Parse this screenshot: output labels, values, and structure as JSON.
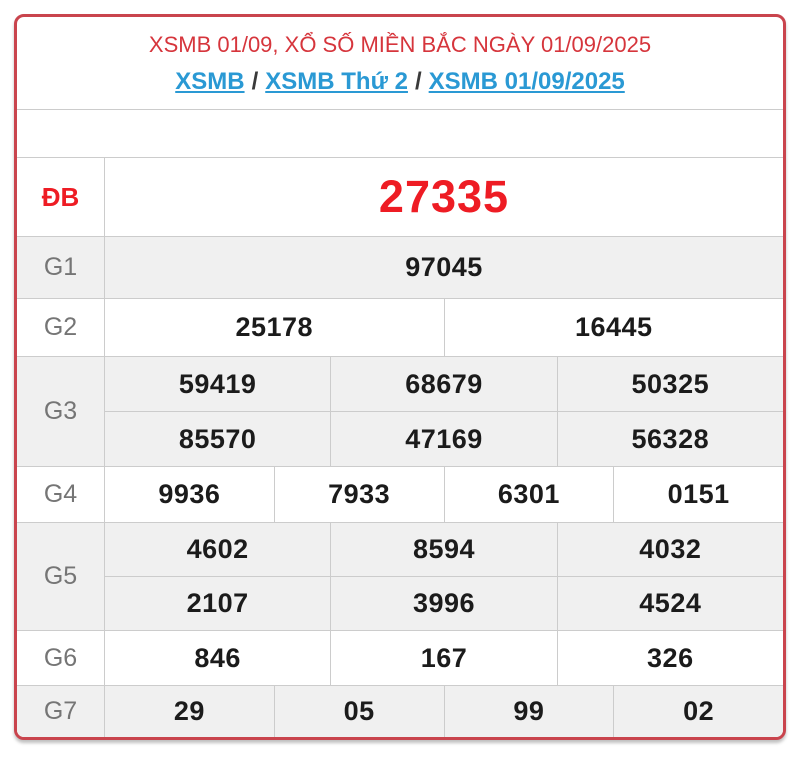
{
  "header": {
    "title": "XSMB 01/09, XỔ SỐ MIỀN BẮC NGÀY 01/09/2025",
    "breadcrumb": {
      "separator": "/",
      "items": [
        {
          "label": "XSMB"
        },
        {
          "label": "XSMB Thứ 2"
        },
        {
          "label": "XSMB 01/09/2025"
        }
      ]
    }
  },
  "prizes": {
    "db": {
      "label": "ĐB",
      "values": [
        "27335"
      ]
    },
    "g1": {
      "label": "G1",
      "values": [
        "97045"
      ]
    },
    "g2": {
      "label": "G2",
      "values": [
        "25178",
        "16445"
      ]
    },
    "g3": {
      "label": "G3",
      "values": [
        "59419",
        "68679",
        "50325",
        "85570",
        "47169",
        "56328"
      ]
    },
    "g4": {
      "label": "G4",
      "values": [
        "9936",
        "7933",
        "6301",
        "0151"
      ]
    },
    "g5": {
      "label": "G5",
      "values": [
        "4602",
        "8594",
        "4032",
        "2107",
        "3996",
        "4524"
      ]
    },
    "g6": {
      "label": "G6",
      "values": [
        "846",
        "167",
        "326"
      ]
    },
    "g7": {
      "label": "G7",
      "values": [
        "29",
        "05",
        "99",
        "02"
      ]
    }
  },
  "colors": {
    "card_border_red": "#c9444d",
    "title_red": "#d6353c",
    "special_red": "#ee1c24",
    "link_blue": "#2a99d4",
    "row_alt_gray": "#f0f0f0",
    "label_gray": "#757575",
    "value_black": "#1b1b1b",
    "cell_border": "#cccccc"
  }
}
